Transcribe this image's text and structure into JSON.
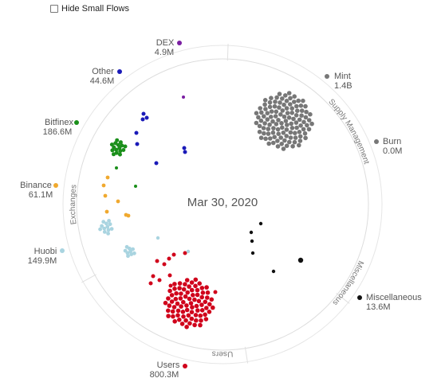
{
  "controls": {
    "hide_small_flows_label": "Hide Small Flows",
    "hide_small_flows_checked": false
  },
  "chart_data": {
    "type": "scatter",
    "title": "Mar 30, 2020",
    "groups": [
      "Supply Management",
      "Miscellaneous",
      "Users",
      "Exchanges"
    ],
    "nodes": [
      {
        "key": "dex",
        "name": "DEX",
        "value": "4.9M",
        "color": "#7b1fa2"
      },
      {
        "key": "mint",
        "name": "Mint",
        "value": "1.4B",
        "color": "#777777"
      },
      {
        "key": "burn",
        "name": "Burn",
        "value": "0.0M",
        "color": "#777777"
      },
      {
        "key": "misc",
        "name": "Miscellaneous",
        "value": "13.6M",
        "color": "#111111"
      },
      {
        "key": "users",
        "name": "Users",
        "value": "800.3M",
        "color": "#d0021b"
      },
      {
        "key": "huobi",
        "name": "Huobi",
        "value": "149.9M",
        "color": "#a9d4e0"
      },
      {
        "key": "binance",
        "name": "Binance",
        "value": "61.1M",
        "color": "#f0a92e"
      },
      {
        "key": "bitfinex",
        "name": "Bitfinex",
        "value": "186.6M",
        "color": "#1a8f1a"
      },
      {
        "key": "other",
        "name": "Other",
        "value": "44.6M",
        "color": "#1a1ab8"
      }
    ]
  }
}
